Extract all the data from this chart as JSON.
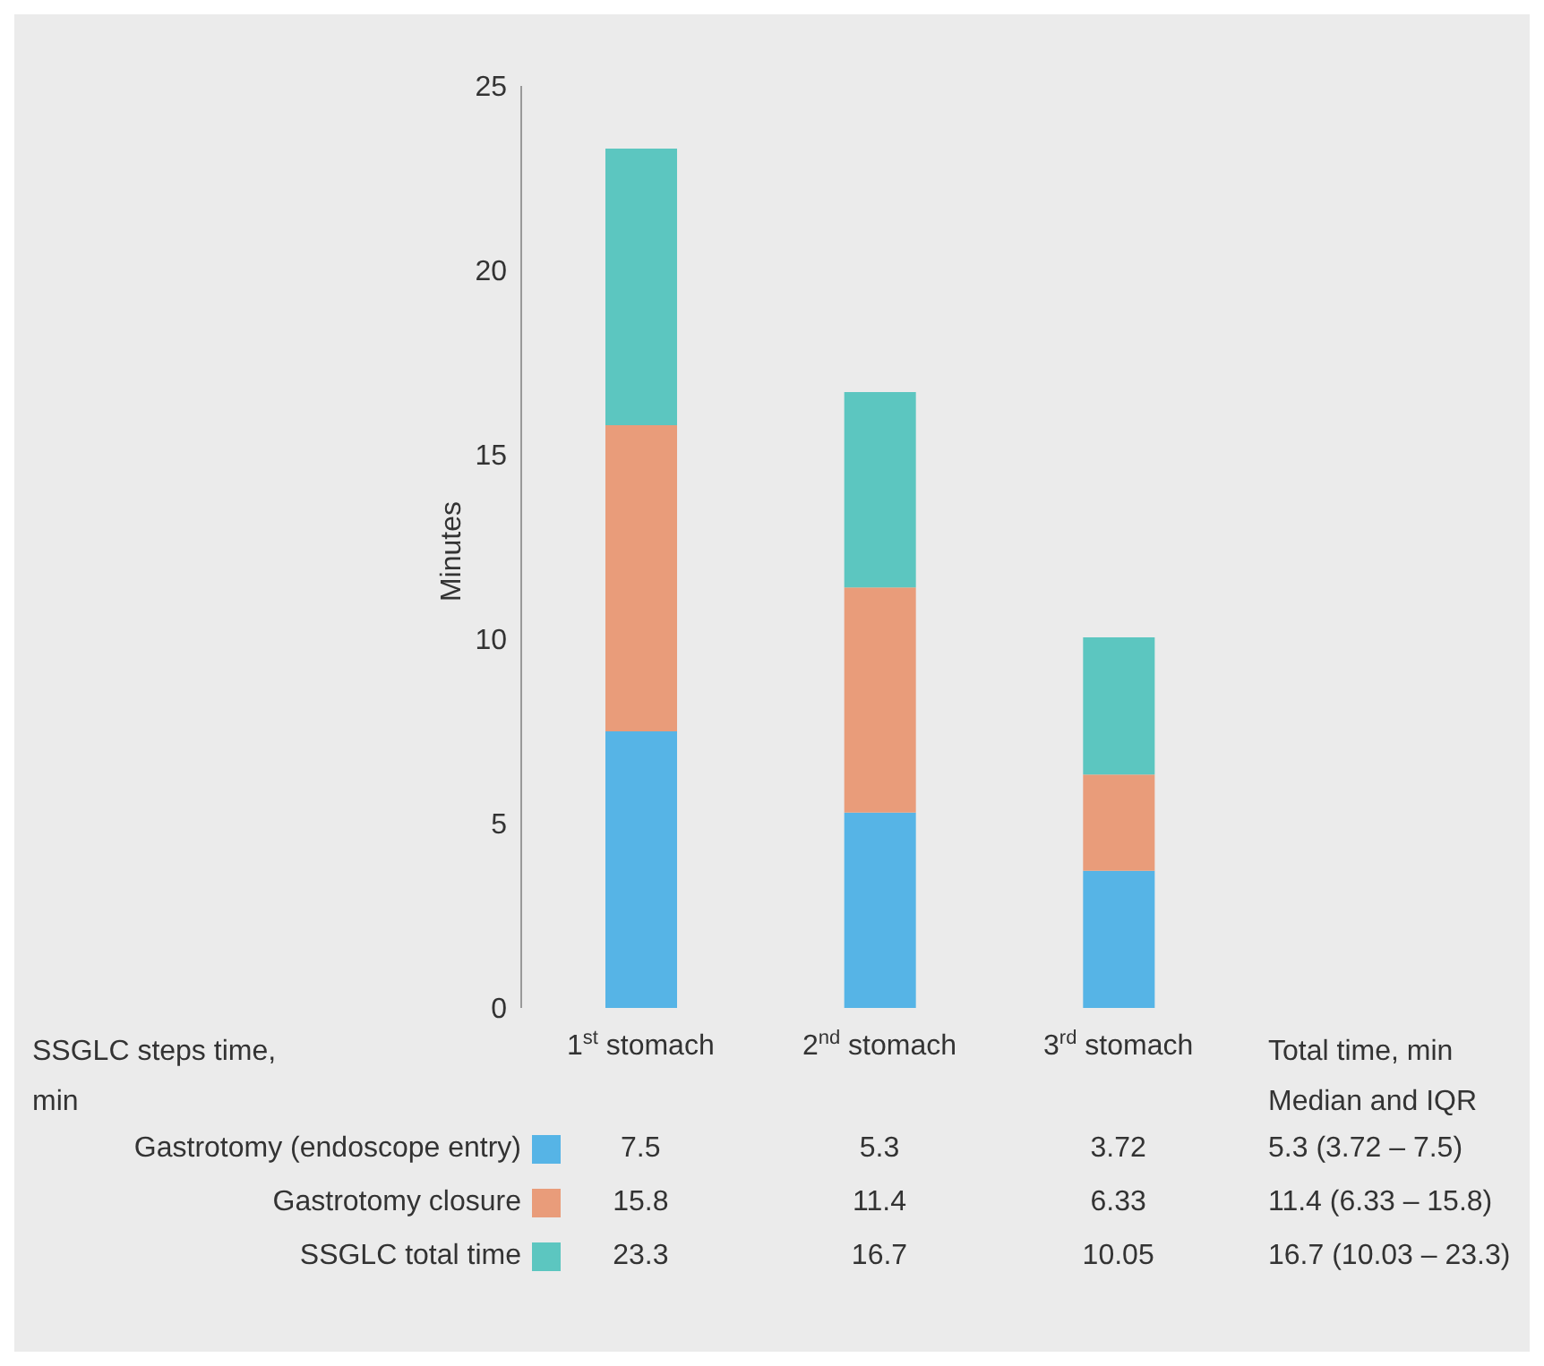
{
  "chart_data": {
    "type": "bar",
    "stacked": true,
    "ylabel": "Minutes",
    "categories": [
      "1$^{st}$ stomach",
      "2$^{nd}$ stomach",
      "3$^{rd}$ stomach"
    ],
    "series": [
      {
        "name": "Gastrotomy (endoscope entry)",
        "color": "#56b4e6",
        "values": [
          7.5,
          5.3,
          3.72
        ]
      },
      {
        "name": "Gastrotomy closure",
        "color": "#e99c7a",
        "values": [
          8.3,
          6.1,
          2.61
        ]
      },
      {
        "name": "SSGLC total time",
        "color": "#5cc6c0",
        "values": [
          7.5,
          5.3,
          3.72
        ]
      }
    ],
    "ylim": [
      0,
      25
    ],
    "yticks": [
      0,
      5,
      10,
      15,
      20,
      25
    ],
    "legend": "bottom",
    "annotations": [
      "SSGLC steps time, min",
      "Total time, min",
      "Median and IQR",
      "7.5",
      "5.3",
      "3.72",
      "5.3 (3.72 – 7.5)",
      "15.8",
      "11.4",
      "6.33",
      "11.4 (6.33 – 15.8)",
      "23.3",
      "16.7",
      "10.05",
      "16.7 (10.03 – 23.3)"
    ]
  }
}
